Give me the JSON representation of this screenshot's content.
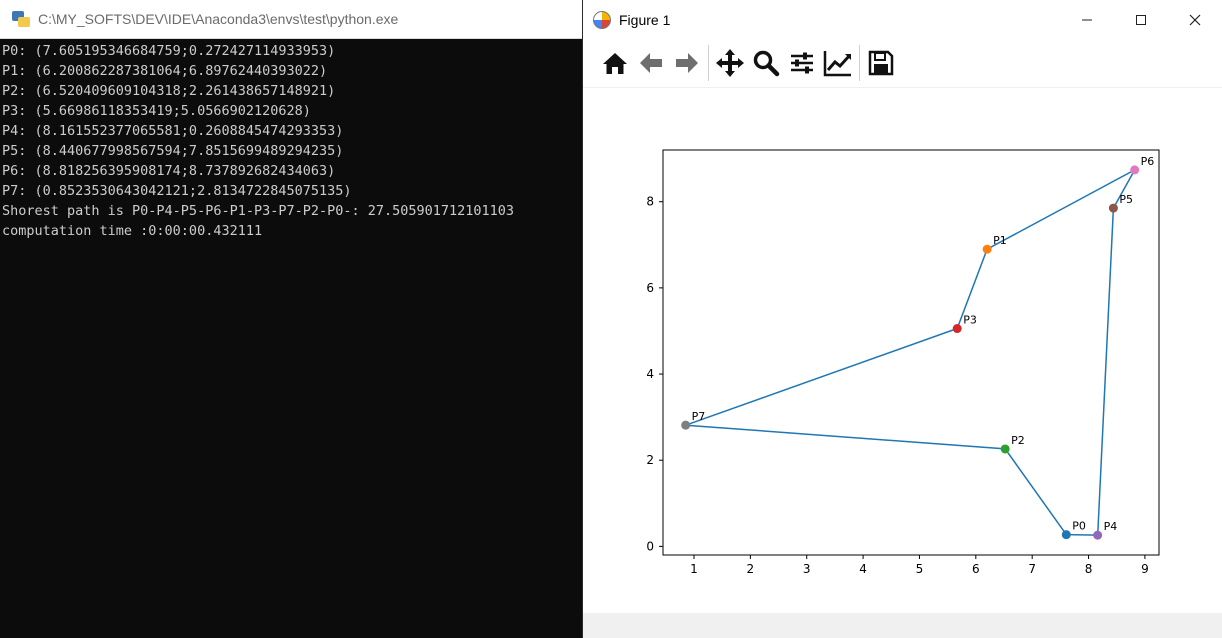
{
  "console": {
    "title": "C:\\MY_SOFTS\\DEV\\IDE\\Anaconda3\\envs\\test\\python.exe",
    "lines": [
      "P0: (7.605195346684759;0.272427114933953)",
      "P1: (6.200862287381064;6.89762440393022)",
      "P2: (6.520409609104318;2.261438657148921)",
      "P3: (5.66986118353419;5.0566902120628)",
      "P4: (8.161552377065581;0.2608845474293353)",
      "P5: (8.440677998567594;7.8515699489294235)",
      "P6: (8.818256395908174;8.737892682434063)",
      "P7: (0.8523530643042121;2.8134722845075135)",
      "Shorest path is P0-P4-P5-P6-P1-P3-P7-P2-P0-: 27.505901712101103",
      "computation time :0:00:00.432111"
    ]
  },
  "figure": {
    "title": "Figure 1",
    "toolbar": [
      {
        "name": "home-icon"
      },
      {
        "name": "back-arrow-icon"
      },
      {
        "name": "forward-arrow-icon"
      },
      {
        "name": "pan-icon"
      },
      {
        "name": "zoom-icon"
      },
      {
        "name": "subplots-config-icon"
      },
      {
        "name": "edit-axes-icon"
      },
      {
        "name": "save-icon"
      }
    ]
  },
  "chart_data": {
    "type": "scatter",
    "title": "",
    "xlabel": "",
    "ylabel": "",
    "xlim": [
      0.45,
      9.25
    ],
    "ylim": [
      -0.2,
      9.2
    ],
    "xticks": [
      "1",
      "2",
      "3",
      "4",
      "5",
      "6",
      "7",
      "8",
      "9"
    ],
    "yticks": [
      "0",
      "2",
      "4",
      "6",
      "8"
    ],
    "grid": false,
    "points": [
      {
        "label": "P0",
        "x": 7.605195346684759,
        "y": 0.272427114933953,
        "color": "#1f77b4"
      },
      {
        "label": "P1",
        "x": 6.200862287381064,
        "y": 6.89762440393022,
        "color": "#ff7f0e"
      },
      {
        "label": "P2",
        "x": 6.520409609104318,
        "y": 2.261438657148921,
        "color": "#2ca02c"
      },
      {
        "label": "P3",
        "x": 5.66986118353419,
        "y": 5.0566902120628,
        "color": "#d62728"
      },
      {
        "label": "P4",
        "x": 8.161552377065581,
        "y": 0.2608845474293353,
        "color": "#9467bd"
      },
      {
        "label": "P5",
        "x": 8.440677998567594,
        "y": 7.8515699489294235,
        "color": "#8c564b"
      },
      {
        "label": "P6",
        "x": 8.818256395908174,
        "y": 8.737892682434063,
        "color": "#e377c2"
      },
      {
        "label": "P7",
        "x": 0.8523530643042121,
        "y": 2.8134722845075135,
        "color": "#7f7f7f"
      }
    ],
    "path": [
      "P0",
      "P4",
      "P5",
      "P6",
      "P1",
      "P3",
      "P7",
      "P2",
      "P0"
    ],
    "line_color": "#1f77b4"
  }
}
